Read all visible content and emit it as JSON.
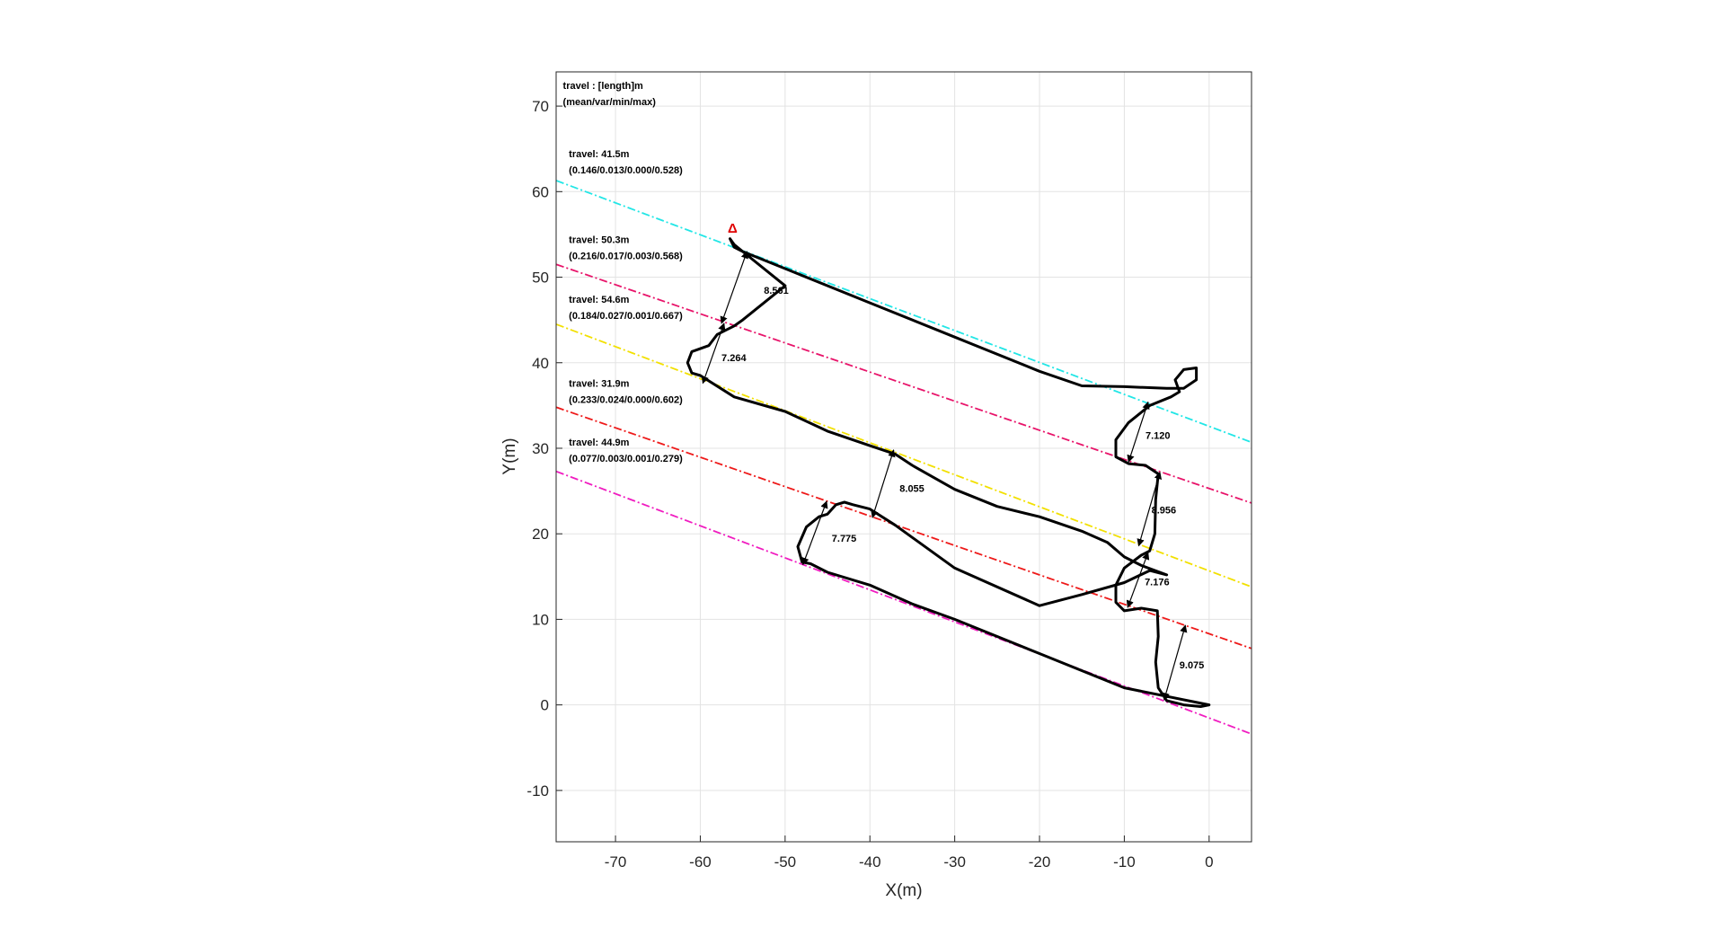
{
  "chart_data": {
    "type": "line",
    "xlabel": "X(m)",
    "ylabel": "Y(m)",
    "xlim": [
      -77,
      5
    ],
    "ylim": [
      -16,
      74
    ],
    "xticks": [
      -70,
      -60,
      -50,
      -40,
      -30,
      -20,
      -10,
      0
    ],
    "yticks": [
      -10,
      0,
      10,
      20,
      30,
      40,
      50,
      60,
      70
    ],
    "grid": true,
    "legend_header": [
      "travel : [length]m",
      "(mean/var/min/max)"
    ],
    "lanes": [
      {
        "color": "#22e6e6",
        "y_at_xmin": 61.3,
        "y_at_xmax": 30.7
      },
      {
        "color": "#e8146a",
        "y_at_xmin": 51.5,
        "y_at_xmax": 23.6
      },
      {
        "color": "#f2e000",
        "y_at_xmin": 44.5,
        "y_at_xmax": 13.8
      },
      {
        "color": "#ee1a1a",
        "y_at_xmin": 34.8,
        "y_at_xmax": 6.6
      },
      {
        "color": "#f01cc0",
        "y_at_xmin": 27.3,
        "y_at_xmax": -3.4
      }
    ],
    "series_annotations": [
      {
        "travel": "travel: 41.5m",
        "stats": "(0.146/0.013/0.000/0.528)",
        "y": 64
      },
      {
        "travel": "travel: 50.3m",
        "stats": "(0.216/0.017/0.003/0.568)",
        "y": 54
      },
      {
        "travel": "travel: 54.6m",
        "stats": "(0.184/0.027/0.001/0.667)",
        "y": 47
      },
      {
        "travel": "travel: 31.9m",
        "stats": "(0.233/0.024/0.000/0.602)",
        "y": 37.2
      },
      {
        "travel": "travel: 44.9m",
        "stats": "(0.077/0.003/0.001/0.279)",
        "y": 30.3
      }
    ],
    "trajectory": [
      [
        0,
        0
      ],
      [
        -1,
        -0.2
      ],
      [
        -3,
        0
      ],
      [
        -5,
        0.5
      ],
      [
        -6,
        2
      ],
      [
        -6.3,
        5
      ],
      [
        -6,
        8
      ],
      [
        -6.1,
        11
      ],
      [
        -8,
        11.3
      ],
      [
        -10,
        11
      ],
      [
        -11,
        12
      ],
      [
        -11,
        14
      ],
      [
        -10,
        16
      ],
      [
        -8,
        17.5
      ],
      [
        -7,
        18
      ],
      [
        -6.4,
        20
      ],
      [
        -6.3,
        24
      ],
      [
        -6,
        27
      ],
      [
        -7.5,
        28
      ],
      [
        -9.5,
        28.2
      ],
      [
        -11,
        29
      ],
      [
        -11,
        31
      ],
      [
        -9.5,
        33
      ],
      [
        -7,
        35
      ],
      [
        -4.5,
        36
      ],
      [
        -3.5,
        36.6
      ],
      [
        -4,
        38
      ],
      [
        -3,
        39.2
      ],
      [
        -1.5,
        39.4
      ],
      [
        -1.5,
        38
      ],
      [
        -3,
        37
      ],
      [
        -5,
        37
      ],
      [
        -10,
        37.2
      ],
      [
        -15,
        37.3
      ],
      [
        -20,
        39
      ],
      [
        -30,
        43
      ],
      [
        -40,
        47
      ],
      [
        -50,
        51
      ],
      [
        -55,
        53
      ],
      [
        -56,
        53.5
      ],
      [
        -56.5,
        54.5
      ],
      [
        -56,
        53.8
      ],
      [
        -55,
        53
      ],
      [
        -50,
        49
      ],
      [
        -55,
        45
      ],
      [
        -56,
        44.3
      ],
      [
        -58,
        43.3
      ],
      [
        -59,
        42
      ],
      [
        -61,
        41.3
      ],
      [
        -61.5,
        40
      ],
      [
        -61,
        38.8
      ],
      [
        -60,
        38.5
      ],
      [
        -56,
        36
      ],
      [
        -50,
        34.3
      ],
      [
        -45,
        32
      ],
      [
        -40,
        30.3
      ],
      [
        -37,
        29.3
      ],
      [
        -35,
        28
      ],
      [
        -30,
        25.2
      ],
      [
        -25,
        23.2
      ],
      [
        -20,
        22
      ],
      [
        -15,
        20.3
      ],
      [
        -12,
        19
      ],
      [
        -10,
        17.3
      ],
      [
        -8,
        16.3
      ],
      [
        -5,
        15.2
      ],
      [
        -7,
        15.7
      ],
      [
        -10,
        14.3
      ],
      [
        -15,
        12.9
      ],
      [
        -20,
        11.6
      ],
      [
        -30,
        16
      ],
      [
        -37,
        21
      ],
      [
        -40,
        22.9
      ],
      [
        -42,
        23.4
      ],
      [
        -43,
        23.7
      ],
      [
        -44,
        23.4
      ],
      [
        -45,
        22.3
      ],
      [
        -46,
        22
      ],
      [
        -47.5,
        20.8
      ],
      [
        -48.5,
        18.5
      ],
      [
        -48,
        16.7
      ],
      [
        -47,
        16.5
      ],
      [
        -45,
        15.5
      ],
      [
        -40,
        14
      ],
      [
        -35,
        11.8
      ],
      [
        -30,
        10
      ],
      [
        -20,
        6
      ],
      [
        -10,
        2
      ],
      [
        0,
        0
      ]
    ],
    "start_marker": {
      "x": -56.2,
      "y": 55.2,
      "label": "Δ"
    },
    "distances": [
      {
        "label": "8.561",
        "from": [
          -54.5,
          53
        ],
        "to": [
          -57.5,
          44.6
        ],
        "text_at": [
          -52.5,
          48.5
        ]
      },
      {
        "label": "7.264",
        "from": [
          -57.2,
          44.6
        ],
        "to": [
          -59.7,
          37.6
        ],
        "text_at": [
          -57.5,
          40.6
        ]
      },
      {
        "label": "8.055",
        "from": [
          -37.2,
          29.8
        ],
        "to": [
          -39.7,
          21.9
        ],
        "text_at": [
          -36.5,
          25.3
        ]
      },
      {
        "label": "7.775",
        "from": [
          -45.1,
          23.8
        ],
        "to": [
          -47.9,
          16.4
        ],
        "text_at": [
          -44.5,
          19.5
        ]
      },
      {
        "label": "7.120",
        "from": [
          -7.2,
          35.4
        ],
        "to": [
          -9.5,
          28.4
        ],
        "text_at": [
          -7.5,
          31.5
        ]
      },
      {
        "label": "8.956",
        "from": [
          -5.8,
          27.2
        ],
        "to": [
          -8.3,
          18.6
        ],
        "text_at": [
          -6.8,
          22.8
        ]
      },
      {
        "label": "7.176",
        "from": [
          -7.2,
          17.8
        ],
        "to": [
          -9.6,
          11.4
        ],
        "text_at": [
          -7.6,
          14.4
        ]
      },
      {
        "label": "9.075",
        "from": [
          -2.8,
          9.3
        ],
        "to": [
          -5.3,
          0.6
        ],
        "text_at": [
          -3.5,
          4.7
        ]
      }
    ]
  }
}
